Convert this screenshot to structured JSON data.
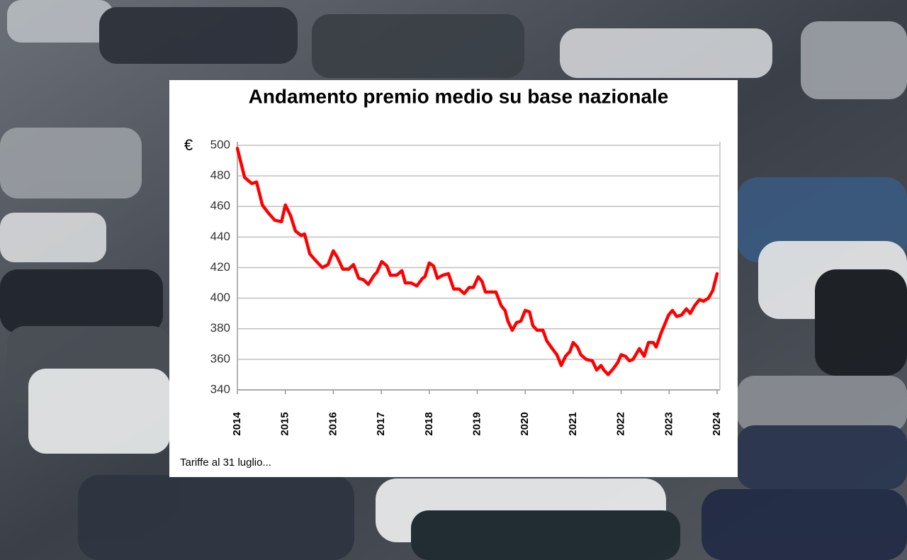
{
  "chart_data": {
    "type": "line",
    "title": "Andamento premio medio su base nazionale",
    "y_label": "€",
    "note": "Tariffe al 31 luglio...",
    "color": "#ff0000",
    "grid": true,
    "xlim": [
      2014,
      2024
    ],
    "xticks": [
      2014,
      2015,
      2016,
      2017,
      2018,
      2019,
      2020,
      2021,
      2022,
      2023,
      2024
    ],
    "ylim": [
      340,
      500
    ],
    "yticks": [
      340,
      360,
      380,
      400,
      420,
      440,
      460,
      480,
      500
    ],
    "x": [
      2014.0,
      2014.15,
      2014.3,
      2014.4,
      2014.52,
      2014.64,
      2014.78,
      2014.92,
      2015.0,
      2015.11,
      2015.21,
      2015.33,
      2015.4,
      2015.51,
      2015.62,
      2015.77,
      2015.89,
      2016.0,
      2016.08,
      2016.2,
      2016.32,
      2016.42,
      2016.53,
      2016.63,
      2016.73,
      2016.85,
      2016.91,
      2017.01,
      2017.12,
      2017.19,
      2017.32,
      2017.43,
      2017.5,
      2017.62,
      2017.74,
      2017.86,
      2017.91,
      2018.0,
      2018.09,
      2018.17,
      2018.28,
      2018.4,
      2018.51,
      2018.62,
      2018.73,
      2018.83,
      2018.92,
      2019.02,
      2019.1,
      2019.17,
      2019.29,
      2019.39,
      2019.5,
      2019.58,
      2019.64,
      2019.73,
      2019.82,
      2019.91,
      2020.0,
      2020.09,
      2020.16,
      2020.25,
      2020.37,
      2020.45,
      2020.54,
      2020.66,
      2020.75,
      2020.84,
      2020.93,
      2021.0,
      2021.09,
      2021.16,
      2021.27,
      2021.4,
      2021.49,
      2021.58,
      2021.64,
      2021.73,
      2021.84,
      2021.93,
      2022.0,
      2022.09,
      2022.17,
      2022.25,
      2022.38,
      2022.48,
      2022.57,
      2022.67,
      2022.73,
      2022.83,
      2022.91,
      2022.99,
      2023.07,
      2023.16,
      2023.26,
      2023.36,
      2023.44,
      2023.53,
      2023.63,
      2023.72,
      2023.82,
      2023.91,
      2024.0
    ],
    "values": [
      498,
      479,
      475,
      476,
      461,
      456,
      451,
      450,
      461,
      454,
      444,
      441,
      442,
      429,
      425,
      420,
      422,
      431,
      427,
      419,
      419,
      422,
      413,
      412,
      409,
      415,
      417,
      424,
      421,
      415,
      415,
      418,
      410,
      410,
      408,
      413,
      414,
      423,
      421,
      413,
      415,
      416,
      406,
      406,
      403,
      407,
      407,
      414,
      411,
      404,
      404,
      404,
      395,
      392,
      385,
      379,
      384,
      385,
      392,
      391,
      382,
      379,
      379,
      372,
      368,
      363,
      356,
      362,
      365,
      371,
      368,
      363,
      360,
      359,
      353,
      356,
      353,
      350,
      354,
      358,
      363,
      362,
      359,
      360,
      367,
      362,
      371,
      371,
      368,
      377,
      383,
      389,
      392,
      388,
      389,
      393,
      390,
      395,
      399,
      398,
      400,
      405,
      416
    ]
  }
}
